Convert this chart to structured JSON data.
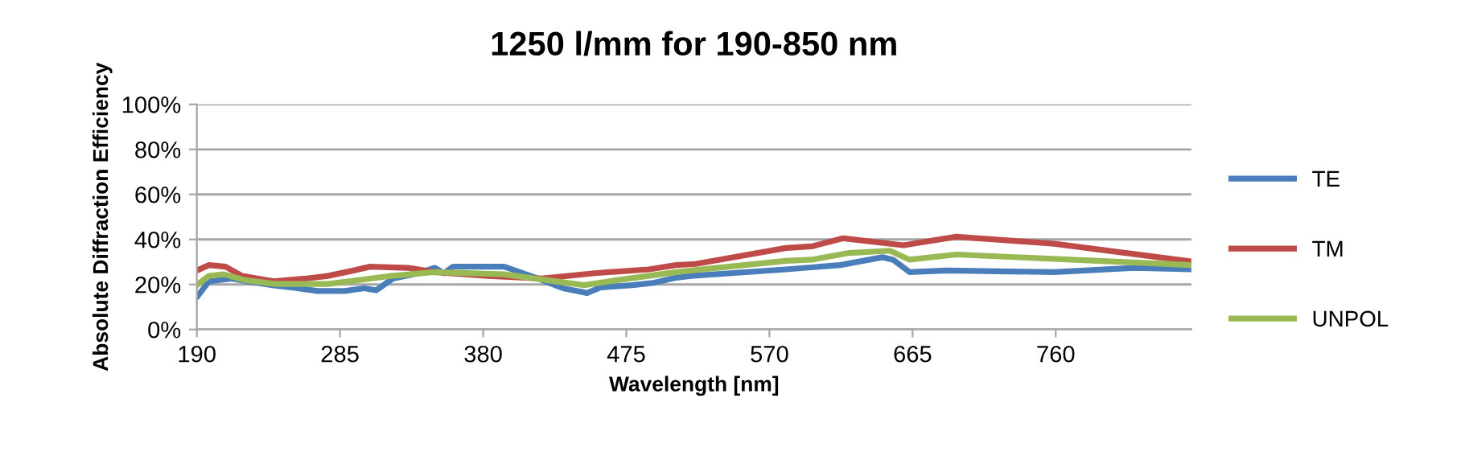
{
  "chart_data": {
    "type": "line",
    "title": "1250 l/mm for 190-850 nm",
    "xlabel": "Wavelength [nm]",
    "ylabel": "Absolute Diffraction Efficiency",
    "xlim": [
      190,
      850
    ],
    "xticks": [
      190,
      285,
      380,
      475,
      570,
      665,
      760
    ],
    "ylim": [
      0,
      100
    ],
    "yticks": [
      {
        "value": 0,
        "label": "0%"
      },
      {
        "value": 20,
        "label": "20%"
      },
      {
        "value": 40,
        "label": "40%"
      },
      {
        "value": 60,
        "label": "60%"
      },
      {
        "value": 80,
        "label": "80%"
      },
      {
        "value": 100,
        "label": "100%"
      }
    ],
    "grid": "y",
    "legend": "right",
    "marker": "none",
    "line_style": "solid",
    "series": [
      {
        "name": "TE",
        "color": "#4a7ebb",
        "x": [
          190,
          198,
          213,
          224,
          242,
          255,
          270,
          288,
          301,
          309,
          320,
          337,
          348,
          354,
          360,
          394,
          415,
          433,
          449,
          458,
          479,
          493,
          508,
          518,
          581,
          617,
          645,
          652,
          663,
          688,
          759,
          812,
          850
        ],
        "values": [
          14.3,
          21.4,
          22.6,
          21.4,
          19.5,
          18.5,
          17.1,
          17.1,
          18.3,
          17.4,
          22.6,
          25,
          27.4,
          25,
          27.9,
          27.9,
          23,
          18.3,
          16.2,
          18.7,
          19.7,
          20.7,
          23,
          23.8,
          26.7,
          28.6,
          32.1,
          31,
          25.5,
          26.2,
          25.5,
          27.4,
          26.7
        ]
      },
      {
        "name": "TM",
        "color": "#be4b48",
        "x": [
          190,
          198,
          209,
          220,
          241,
          262,
          277,
          294,
          305,
          330,
          348,
          383,
          419,
          454,
          490,
          508,
          521,
          581,
          598,
          619,
          659,
          694,
          759,
          850
        ],
        "values": [
          26.2,
          28.6,
          27.9,
          23.8,
          21.4,
          22.6,
          23.8,
          26.2,
          27.9,
          27.4,
          25.5,
          23.8,
          22.6,
          25,
          26.7,
          28.6,
          29.1,
          36.2,
          36.9,
          40.5,
          37.4,
          41.2,
          38.1,
          30.2
        ]
      },
      {
        "name": "UNPOL",
        "color": "#98b954",
        "x": [
          190,
          198,
          208,
          222,
          242,
          277,
          305,
          319,
          348,
          394,
          422,
          447,
          469,
          508,
          518,
          581,
          598,
          623,
          650,
          663,
          694,
          850
        ],
        "values": [
          19.7,
          23.8,
          24.5,
          21.9,
          20.2,
          20.2,
          22.6,
          23.8,
          25.5,
          24.5,
          21.9,
          19.7,
          21.9,
          25.5,
          26.2,
          30.5,
          31,
          34,
          35,
          31,
          33.3,
          28.6
        ]
      }
    ]
  }
}
